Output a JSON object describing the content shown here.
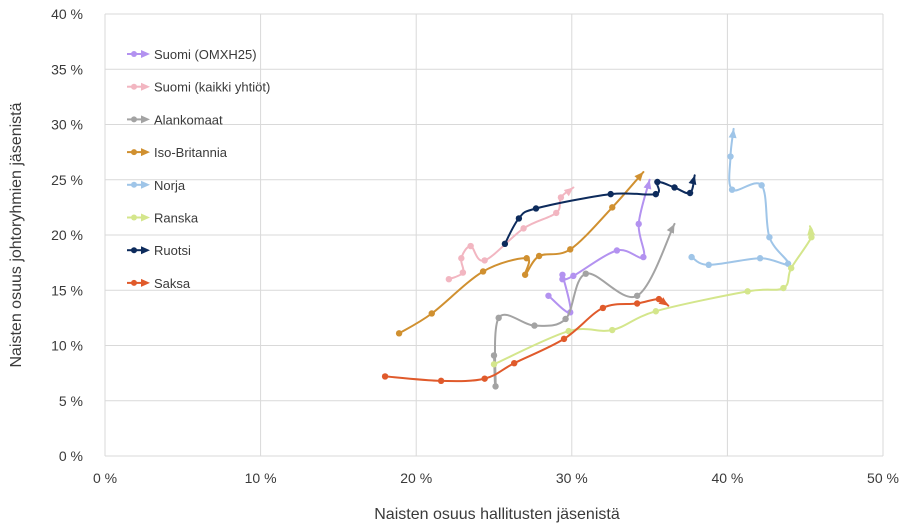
{
  "chart_data": {
    "type": "line",
    "title": "",
    "xlabel": "Naisten osuus hallitusten jäsenistä",
    "ylabel": "Naisten osuus johtoryhmien jäsenistä",
    "xlim": [
      0,
      50
    ],
    "ylim": [
      0,
      40
    ],
    "x_ticks": [
      0,
      10,
      20,
      30,
      40,
      50
    ],
    "y_ticks": [
      0,
      5,
      10,
      15,
      20,
      25,
      30,
      35,
      40
    ],
    "x_tick_labels": [
      "0 %",
      "10 %",
      "20 %",
      "30 %",
      "40 %",
      "50 %"
    ],
    "y_tick_labels": [
      "0 %",
      "5 %",
      "10 %",
      "15 %",
      "20 %",
      "25 %",
      "30 %",
      "35 %",
      "40 %"
    ],
    "grid": true,
    "legend_position": "top-left",
    "series": [
      {
        "name": "Suomi (OMXH25)",
        "color": "#b392f0",
        "points": [
          [
            28.5,
            14.5
          ],
          [
            29.9,
            13.0
          ],
          [
            29.4,
            16.4
          ],
          [
            29.4,
            16.0
          ],
          [
            30.1,
            16.3
          ],
          [
            32.9,
            18.6
          ],
          [
            34.6,
            18.0
          ],
          [
            34.3,
            21.0
          ],
          [
            35.0,
            25.0
          ]
        ]
      },
      {
        "name": "Suomi (kaikki yhtiöt)",
        "color": "#f2b6c1",
        "points": [
          [
            22.1,
            16.0
          ],
          [
            23.0,
            16.6
          ],
          [
            22.9,
            17.9
          ],
          [
            23.5,
            19.0
          ],
          [
            24.4,
            17.7
          ],
          [
            26.9,
            20.6
          ],
          [
            29.0,
            22.0
          ],
          [
            29.3,
            23.4
          ],
          [
            30.1,
            24.3
          ]
        ]
      },
      {
        "name": "Alankomaat",
        "color": "#a3a3a3",
        "points": [
          [
            25.0,
            9.1
          ],
          [
            25.1,
            6.3
          ],
          [
            25.3,
            12.5
          ],
          [
            27.6,
            11.8
          ],
          [
            29.6,
            12.4
          ],
          [
            30.9,
            16.5
          ],
          [
            34.2,
            14.5
          ],
          [
            36.6,
            21.0
          ]
        ]
      },
      {
        "name": "Iso-Britannia",
        "color": "#d09030",
        "points": [
          [
            18.9,
            11.1
          ],
          [
            21.0,
            12.9
          ],
          [
            24.3,
            16.7
          ],
          [
            27.1,
            17.9
          ],
          [
            27.0,
            16.4
          ],
          [
            27.9,
            18.1
          ],
          [
            29.9,
            18.7
          ],
          [
            32.6,
            22.5
          ],
          [
            34.6,
            25.7
          ]
        ]
      },
      {
        "name": "Norja",
        "color": "#9fc5e8",
        "points": [
          [
            37.7,
            18.0
          ],
          [
            38.8,
            17.3
          ],
          [
            42.1,
            17.9
          ],
          [
            43.9,
            17.4
          ],
          [
            42.7,
            19.8
          ],
          [
            42.2,
            24.5
          ],
          [
            40.3,
            24.1
          ],
          [
            40.2,
            27.1
          ],
          [
            40.4,
            29.6
          ]
        ]
      },
      {
        "name": "Ranska",
        "color": "#d4e68c",
        "points": [
          [
            25.0,
            8.3
          ],
          [
            29.8,
            11.3
          ],
          [
            32.6,
            11.4
          ],
          [
            35.4,
            13.1
          ],
          [
            41.3,
            14.9
          ],
          [
            43.6,
            15.2
          ],
          [
            44.1,
            17.0
          ],
          [
            45.4,
            19.8
          ],
          [
            45.3,
            20.8
          ]
        ]
      },
      {
        "name": "Ruotsi",
        "color": "#0d2b5c",
        "points": [
          [
            25.7,
            19.2
          ],
          [
            26.6,
            21.5
          ],
          [
            27.7,
            22.4
          ],
          [
            32.5,
            23.7
          ],
          [
            35.4,
            23.7
          ],
          [
            35.5,
            24.8
          ],
          [
            36.6,
            24.3
          ],
          [
            37.6,
            23.8
          ],
          [
            37.9,
            25.4
          ]
        ]
      },
      {
        "name": "Saksa",
        "color": "#e05a2b",
        "points": [
          [
            18.0,
            7.2
          ],
          [
            21.6,
            6.8
          ],
          [
            24.4,
            7.0
          ],
          [
            26.3,
            8.4
          ],
          [
            29.5,
            10.6
          ],
          [
            32.0,
            13.4
          ],
          [
            34.2,
            13.8
          ],
          [
            35.6,
            14.2
          ],
          [
            36.2,
            13.6
          ]
        ]
      }
    ]
  }
}
